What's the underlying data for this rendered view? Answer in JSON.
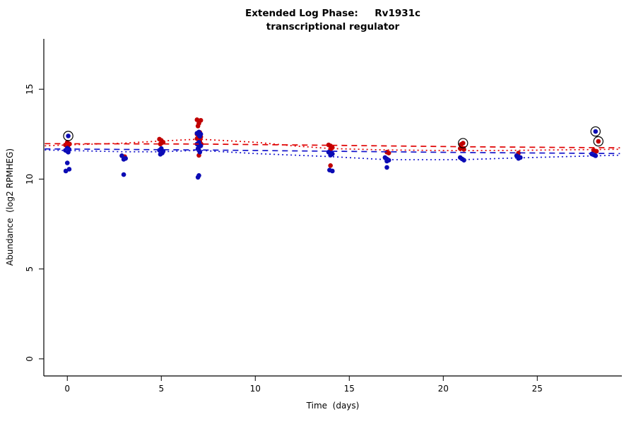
{
  "chart_data": {
    "type": "scatter",
    "title": "Extended Log Phase:     Rv1931c",
    "subtitle": "transcriptional regulator",
    "xlabel": "Time  (days)",
    "ylabel": "Abundance  (log2 RPMHEG)",
    "xlim": [
      -1.25,
      29.5
    ],
    "ylim": [
      -0.95,
      17.8
    ],
    "xticks": [
      0,
      5,
      10,
      15,
      20,
      25
    ],
    "yticks": [
      0,
      5,
      10,
      15
    ],
    "grid": false,
    "legend": "none",
    "axis_color": "#000000",
    "background": "#ffffff",
    "series": [
      {
        "name": "red",
        "color": "#c00000",
        "points": [
          [
            0,
            12.05
          ],
          [
            0.12,
            11.95
          ],
          [
            -0.1,
            11.9
          ],
          [
            0.02,
            11.8
          ],
          [
            3.05,
            11.25
          ],
          [
            4.9,
            12.22
          ],
          [
            5.0,
            12.15
          ],
          [
            5.1,
            12.05
          ],
          [
            5.0,
            12.0
          ],
          [
            4.95,
            11.95
          ],
          [
            6.9,
            13.3
          ],
          [
            7.1,
            13.27
          ],
          [
            7.0,
            13.1
          ],
          [
            6.95,
            12.95
          ],
          [
            7.05,
            12.6
          ],
          [
            6.9,
            12.5
          ],
          [
            7.0,
            12.45
          ],
          [
            7.1,
            12.35
          ],
          [
            6.9,
            12.25
          ],
          [
            7.0,
            12.2
          ],
          [
            7.05,
            12.12
          ],
          [
            7.0,
            12.02
          ],
          [
            7.12,
            11.95
          ],
          [
            7.0,
            11.32
          ],
          [
            13.9,
            11.9
          ],
          [
            14.0,
            11.85
          ],
          [
            14.1,
            11.75
          ],
          [
            14.0,
            11.65
          ],
          [
            14.0,
            10.75
          ],
          [
            17.0,
            11.5
          ],
          [
            17.1,
            11.45
          ],
          [
            20.95,
            11.93
          ],
          [
            20.9,
            11.7
          ],
          [
            21.1,
            11.65
          ],
          [
            24.0,
            11.45
          ],
          [
            28.0,
            11.6
          ],
          [
            28.15,
            11.55
          ]
        ]
      },
      {
        "name": "blue",
        "color": "#0b0bb4",
        "points": [
          [
            0.0,
            11.72
          ],
          [
            0.1,
            11.65
          ],
          [
            -0.1,
            11.6
          ],
          [
            0.0,
            11.55
          ],
          [
            0.05,
            11.5
          ],
          [
            0.0,
            10.9
          ],
          [
            0.1,
            10.55
          ],
          [
            -0.08,
            10.45
          ],
          [
            2.9,
            11.3
          ],
          [
            3.1,
            11.15
          ],
          [
            3.0,
            11.1
          ],
          [
            3.0,
            10.25
          ],
          [
            5.0,
            11.7
          ],
          [
            4.9,
            11.6
          ],
          [
            5.1,
            11.55
          ],
          [
            5.0,
            11.5
          ],
          [
            5.05,
            11.45
          ],
          [
            4.95,
            11.38
          ],
          [
            7.0,
            12.62
          ],
          [
            6.9,
            12.55
          ],
          [
            7.1,
            12.5
          ],
          [
            7.0,
            12.45
          ],
          [
            7.05,
            12.38
          ],
          [
            7.0,
            12.05
          ],
          [
            6.9,
            11.95
          ],
          [
            7.0,
            11.9
          ],
          [
            7.1,
            11.85
          ],
          [
            7.0,
            11.78
          ],
          [
            6.95,
            11.7
          ],
          [
            7.0,
            11.6
          ],
          [
            7.05,
            11.5
          ],
          [
            7.0,
            10.2
          ],
          [
            6.95,
            10.1
          ],
          [
            13.9,
            11.5
          ],
          [
            14.0,
            11.45
          ],
          [
            14.1,
            11.4
          ],
          [
            14.0,
            11.33
          ],
          [
            13.95,
            10.5
          ],
          [
            14.1,
            10.45
          ],
          [
            16.9,
            11.2
          ],
          [
            17.0,
            11.12
          ],
          [
            17.1,
            11.05
          ],
          [
            17.0,
            11.0
          ],
          [
            17.0,
            10.65
          ],
          [
            20.9,
            11.2
          ],
          [
            21.0,
            11.12
          ],
          [
            21.1,
            11.05
          ],
          [
            23.9,
            11.3
          ],
          [
            24.0,
            11.25
          ],
          [
            24.1,
            11.2
          ],
          [
            24.0,
            11.15
          ],
          [
            27.9,
            11.4
          ],
          [
            28.0,
            11.35
          ],
          [
            28.1,
            11.3
          ]
        ]
      }
    ],
    "highlighted_points": [
      {
        "x": 0.05,
        "y": 12.4,
        "series": "blue"
      },
      {
        "x": 21.05,
        "y": 12.0,
        "series": "red"
      },
      {
        "x": 28.1,
        "y": 12.65,
        "series": "blue"
      },
      {
        "x": 28.25,
        "y": 12.1,
        "series": "red"
      }
    ],
    "trend_lines": [
      {
        "name": "red-dashed",
        "color": "#e00000",
        "style": "dashed",
        "points": [
          [
            -1.2,
            11.97
          ],
          [
            7,
            11.95
          ],
          [
            14,
            11.88
          ],
          [
            21,
            11.8
          ],
          [
            29.4,
            11.74
          ]
        ]
      },
      {
        "name": "red-dotted",
        "color": "#e00000",
        "style": "dotted",
        "points": [
          [
            -1.2,
            11.85
          ],
          [
            0,
            11.9
          ],
          [
            3,
            12.0
          ],
          [
            5,
            12.12
          ],
          [
            7,
            12.22
          ],
          [
            10,
            12.05
          ],
          [
            12,
            11.85
          ],
          [
            14,
            11.7
          ],
          [
            17,
            11.62
          ],
          [
            21,
            11.58
          ],
          [
            24,
            11.6
          ],
          [
            29.4,
            11.66
          ]
        ]
      },
      {
        "name": "blue-dashed",
        "color": "#1515cc",
        "style": "dashed",
        "points": [
          [
            -1.2,
            11.68
          ],
          [
            7,
            11.62
          ],
          [
            14,
            11.55
          ],
          [
            21,
            11.48
          ],
          [
            29.4,
            11.42
          ]
        ]
      },
      {
        "name": "blue-dotted",
        "color": "#1515cc",
        "style": "dotted",
        "points": [
          [
            -1.2,
            11.62
          ],
          [
            3,
            11.52
          ],
          [
            5,
            11.52
          ],
          [
            7,
            11.6
          ],
          [
            10,
            11.42
          ],
          [
            14,
            11.25
          ],
          [
            17,
            11.08
          ],
          [
            21,
            11.08
          ],
          [
            24,
            11.18
          ],
          [
            29.4,
            11.33
          ]
        ]
      }
    ]
  }
}
